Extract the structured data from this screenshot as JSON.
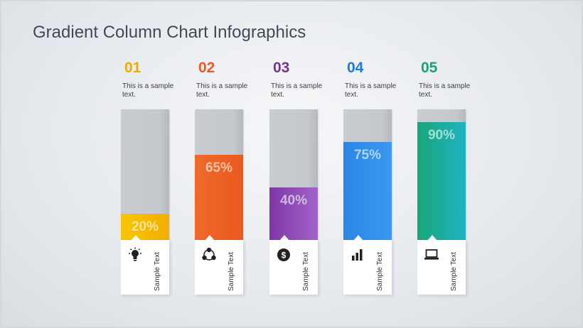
{
  "title": "Gradient Column Chart Infographics",
  "chart_data": {
    "type": "bar",
    "title": "Gradient Column Chart Infographics",
    "categories": [
      "01",
      "02",
      "03",
      "04",
      "05"
    ],
    "values": [
      20,
      65,
      40,
      75,
      90
    ],
    "ylim": [
      0,
      100
    ],
    "value_labels": [
      "20%",
      "65%",
      "40%",
      "75%",
      "90%"
    ],
    "grid": false
  },
  "columns": [
    {
      "number": "01",
      "text": "This is a sample text.",
      "percent": "20%",
      "value": 20,
      "label": "Sample Text",
      "icon": "lightbulb-icon",
      "color": "#ecad00",
      "grad_start": "#f8c500",
      "grad_end": "#f3ae00"
    },
    {
      "number": "02",
      "text": "This is a sample text.",
      "percent": "65%",
      "value": 65,
      "label": "Sample Text",
      "icon": "network-icon",
      "color": "#ea5a24",
      "grad_start": "#f0692b",
      "grad_end": "#e95a1e"
    },
    {
      "number": "03",
      "text": "This is a sample text.",
      "percent": "40%",
      "value": 40,
      "label": "Sample Text",
      "icon": "dollar-icon",
      "color": "#7b3199",
      "grad_start": "#7f36a5",
      "grad_end": "#a064c8"
    },
    {
      "number": "04",
      "text": "This is a sample text.",
      "percent": "75%",
      "value": 75,
      "label": "Sample Text",
      "icon": "bar-chart-icon",
      "color": "#1f7ad8",
      "grad_start": "#2a86e6",
      "grad_end": "#3a98f0"
    },
    {
      "number": "05",
      "text": "This is a sample text.",
      "percent": "90%",
      "value": 90,
      "label": "Sample Text",
      "icon": "laptop-icon",
      "color": "#17a37a",
      "grad_start": "#19a57a",
      "grad_end": "#1fb3c1"
    }
  ]
}
